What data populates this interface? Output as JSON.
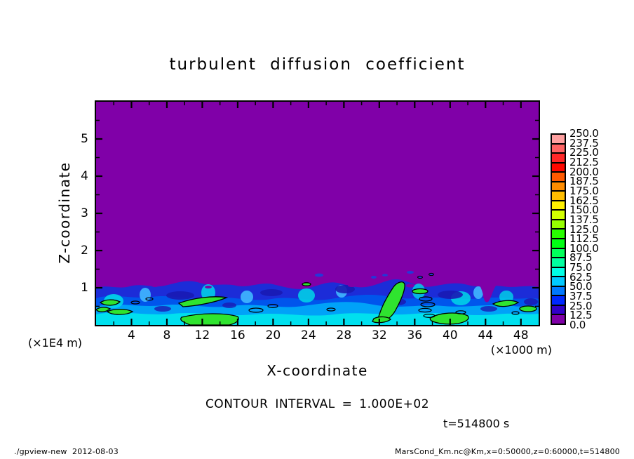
{
  "title": "turbulent diffusion coefficient",
  "x_axis": {
    "label": "X-coordinate",
    "units": "(×1000 m)",
    "tick_labels": [
      "4",
      "8",
      "12",
      "16",
      "20",
      "24",
      "28",
      "32",
      "36",
      "40",
      "44",
      "48"
    ]
  },
  "y_axis": {
    "label": "Z-coordinate",
    "units": "(×1E4 m)",
    "tick_labels": [
      "1",
      "2",
      "3",
      "4",
      "5"
    ]
  },
  "contour_note": "CONTOUR INTERVAL = 1.000E+02",
  "timestamp": "t=514800 s",
  "footer_left": "./gpview-new  2012-08-03",
  "footer_right": "MarsCond_Km.nc@Km,x=0:50000,z=0:60000,t=514800",
  "colorbar": {
    "labels_top_to_bottom": [
      "250.0",
      "237.5",
      "225.0",
      "212.5",
      "200.0",
      "187.5",
      "175.0",
      "162.5",
      "150.0",
      "137.5",
      "125.0",
      "112.5",
      "100.0",
      "87.5",
      "75.0",
      "62.5",
      "50.0",
      "37.5",
      "25.0",
      "12.5",
      "0.0"
    ],
    "colors_top_to_bottom": [
      "#FFA0A0",
      "#FF6464",
      "#FF2828",
      "#FF0800",
      "#FF5A00",
      "#FF8C00",
      "#FFBE00",
      "#FFF000",
      "#D2FF00",
      "#96FF00",
      "#28FF00",
      "#00FF14",
      "#00FF5A",
      "#00FFA0",
      "#00FFE6",
      "#00C8FF",
      "#0078FF",
      "#0028FF",
      "#3200C8",
      "#8000A8"
    ]
  },
  "chart_data": {
    "type": "heatmap",
    "title": "turbulent diffusion coefficient",
    "xlabel": "X-coordinate",
    "x_units": "×1000 m",
    "xlim": [
      0,
      50
    ],
    "x_major_tick_step": 4,
    "x_minor_tick_step": 2,
    "ylabel": "Z-coordinate",
    "y_units": "×1E4 m",
    "ylim": [
      0,
      6
    ],
    "y_major_tick_step": 1,
    "y_minor_tick_step": 0.5,
    "contour_interval": 100.0,
    "time_seconds": 514800,
    "levels_low_to_high": [
      0.0,
      12.5,
      25.0,
      37.5,
      50.0,
      62.5,
      75.0,
      87.5,
      100.0,
      112.5,
      125.0,
      137.5,
      150.0,
      162.5,
      175.0,
      187.5,
      200.0,
      212.5,
      225.0,
      237.5,
      250.0
    ],
    "palette_low_to_high": [
      "#8000A8",
      "#3200C8",
      "#0028FF",
      "#0078FF",
      "#00C8FF",
      "#00FFE6",
      "#00FFA0",
      "#00FF5A",
      "#00FF14",
      "#28FF00",
      "#96FF00",
      "#D2FF00",
      "#FFF000",
      "#FFBE00",
      "#FF8C00",
      "#FF5A00",
      "#FF0800",
      "#FF2828",
      "#FF6464",
      "#FFA0A0"
    ],
    "field_description": "Field ≈ 0 (purple) everywhere above z ≈ 1×1E4 m; turbulent mixed layer below z ≈ 1 with mottled values ~12.5–150 (blue/cyan), green patches exceeding 100 are outlined by the single 100-level contour.",
    "background_color": "#8000A8"
  }
}
